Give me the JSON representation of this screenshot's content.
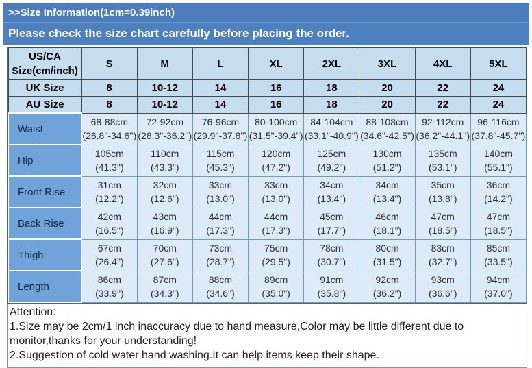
{
  "header": {
    "title": ">>Size Information(1cm=0.39inch)",
    "subtitle": "Please check the size chart carefully before placing the order."
  },
  "colors": {
    "band_blue": "#4d80bf",
    "table_header_bg": "#c6ddf0",
    "label_cell_bg": "#6fa3d9",
    "data_cell_bg": "#dcebf7",
    "border_dark": "#4a4a4a",
    "border_steel_blue": "#6e9cc3"
  },
  "size_chart": {
    "corner_label": "US/CA Size(cm/inch)",
    "sizes": [
      "S",
      "M",
      "L",
      "XL",
      "2XL",
      "3XL",
      "4XL",
      "5XL"
    ],
    "simple_rows": [
      {
        "label": "UK Size",
        "values": [
          "8",
          "10-12",
          "14",
          "16",
          "18",
          "20",
          "22",
          "24"
        ]
      },
      {
        "label": "AU Size",
        "values": [
          "8",
          "10-12",
          "14",
          "16",
          "18",
          "20",
          "22",
          "24"
        ]
      }
    ],
    "measure_rows": [
      {
        "label": "Waist",
        "values": [
          {
            "cm": "68-88cm",
            "inch": "(26.8\"-34.6'')"
          },
          {
            "cm": "72-92cm",
            "inch": "(28.3\"-36.2'')"
          },
          {
            "cm": "76-96cm",
            "inch": "(29.9\"-37.8'')"
          },
          {
            "cm": "80-100cm",
            "inch": "(31.5\"-39.4'')"
          },
          {
            "cm": "84-104cm",
            "inch": "(33.1\"-40.9'')"
          },
          {
            "cm": "88-108cm",
            "inch": "(34.6\"-42.5'')"
          },
          {
            "cm": "92-112cm",
            "inch": "(36.2\"-44.1'')"
          },
          {
            "cm": "96-116cm",
            "inch": "(37.8\"-45.7'')"
          }
        ]
      },
      {
        "label": "Hip",
        "values": [
          {
            "cm": "105cm",
            "inch": "(41.3\")"
          },
          {
            "cm": "110cm",
            "inch": "(43.3\")"
          },
          {
            "cm": "115cm",
            "inch": "(45.3\")"
          },
          {
            "cm": "120cm",
            "inch": "(47.2\")"
          },
          {
            "cm": "125cm",
            "inch": "(49.2\")"
          },
          {
            "cm": "130cm",
            "inch": "(51.2\")"
          },
          {
            "cm": "135cm",
            "inch": "(53.1\")"
          },
          {
            "cm": "140cm",
            "inch": "(55.1\")"
          }
        ]
      },
      {
        "label": "Front Rise",
        "values": [
          {
            "cm": "31cm",
            "inch": "(12.2\")"
          },
          {
            "cm": "32cm",
            "inch": "(12.6\")"
          },
          {
            "cm": "33cm",
            "inch": "(13.0\")"
          },
          {
            "cm": "33cm",
            "inch": "(13.0\")"
          },
          {
            "cm": "34cm",
            "inch": "(13.4\")"
          },
          {
            "cm": "34cm",
            "inch": "(13.4\")"
          },
          {
            "cm": "35cm",
            "inch": "(13.8\")"
          },
          {
            "cm": "36cm",
            "inch": "(14.2\")"
          }
        ]
      },
      {
        "label": "Back Rise",
        "values": [
          {
            "cm": "42cm",
            "inch": "(16.5\")"
          },
          {
            "cm": "43cm",
            "inch": "(16.9\")"
          },
          {
            "cm": "44cm",
            "inch": "(17.3\")"
          },
          {
            "cm": "44cm",
            "inch": "(17.3\")"
          },
          {
            "cm": "45cm",
            "inch": "(17.7\")"
          },
          {
            "cm": "46cm",
            "inch": "(18.1\")"
          },
          {
            "cm": "47cm",
            "inch": "(18.5\")"
          },
          {
            "cm": "47cm",
            "inch": "(18.5\")"
          }
        ]
      },
      {
        "label": "Thigh",
        "values": [
          {
            "cm": "67cm",
            "inch": "(26.4\")"
          },
          {
            "cm": "70cm",
            "inch": "(27.6\")"
          },
          {
            "cm": "73cm",
            "inch": "(28.7\")"
          },
          {
            "cm": "75cm",
            "inch": "(29.5\")"
          },
          {
            "cm": "78cm",
            "inch": "(30.7\")"
          },
          {
            "cm": "80cm",
            "inch": "(31.5\")"
          },
          {
            "cm": "83cm",
            "inch": "(32.7\")"
          },
          {
            "cm": "85cm",
            "inch": "(33.5\")"
          }
        ]
      },
      {
        "label": "Length",
        "values": [
          {
            "cm": "86cm",
            "inch": "(33.9\")"
          },
          {
            "cm": "87cm",
            "inch": "(34.3\")"
          },
          {
            "cm": "88cm",
            "inch": "(34.6\")"
          },
          {
            "cm": "89cm",
            "inch": "(35.0\")"
          },
          {
            "cm": "91cm",
            "inch": "(35.8\")"
          },
          {
            "cm": "92cm",
            "inch": "(36.2\")"
          },
          {
            "cm": "93cm",
            "inch": "(36.6\")"
          },
          {
            "cm": "94cm",
            "inch": "(37.0\")"
          }
        ]
      }
    ]
  },
  "attention": {
    "title": "Attention:",
    "items": [
      "1.Size may be 2cm/1 inch inaccuracy due to hand measure,Color may be little different due to monitor,thanks for your understanding!",
      "2.Suggestion of cold water hand washing.It can help items keep their shape."
    ]
  }
}
